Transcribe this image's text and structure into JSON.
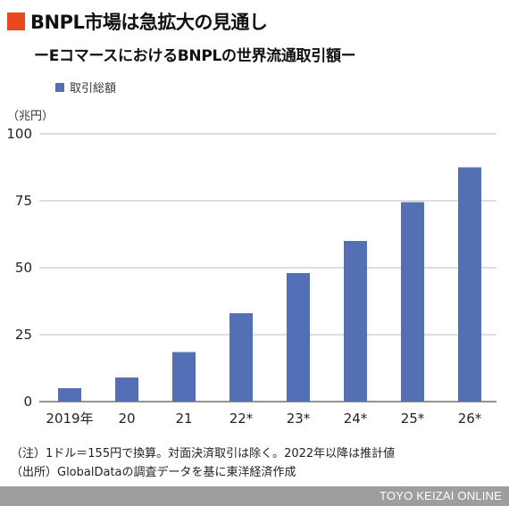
{
  "header": {
    "title": "BNPL市場は急拡大の見通し",
    "subtitle": "ーEコマースにおけるBNPLの世界流通取引額ー"
  },
  "chart_data": {
    "type": "bar",
    "title": "BNPL市場は急拡大の見通し",
    "subtitle": "ーEコマースにおけるBNPLの世界流通取引額ー",
    "ylabel": "（兆円）",
    "xlabel": "",
    "categories": [
      "2019年",
      "20",
      "21",
      "22*",
      "23*",
      "24*",
      "25*",
      "26*"
    ],
    "series": [
      {
        "name": "取引総額",
        "values": [
          5,
          9,
          18.5,
          33,
          48,
          60,
          74.5,
          87.5
        ]
      }
    ],
    "ylim": [
      0,
      100
    ],
    "yticks": [
      "0",
      "25",
      "50",
      "75",
      "100"
    ],
    "grid": true,
    "legend_position": "top-left",
    "bar_color": "#5470b4"
  },
  "notes": [
    "（注）1ドル＝155円で換算。対面決済取引は除く。2022年以降は推計値",
    "（出所）GlobalDataの調査データを基に東洋経済作成"
  ],
  "footer": {
    "brand": "TOYO KEIZAI ONLINE"
  },
  "colors": {
    "accent": "#e8491e",
    "bar": "#5470b4",
    "footer": "#9e9e9e"
  }
}
